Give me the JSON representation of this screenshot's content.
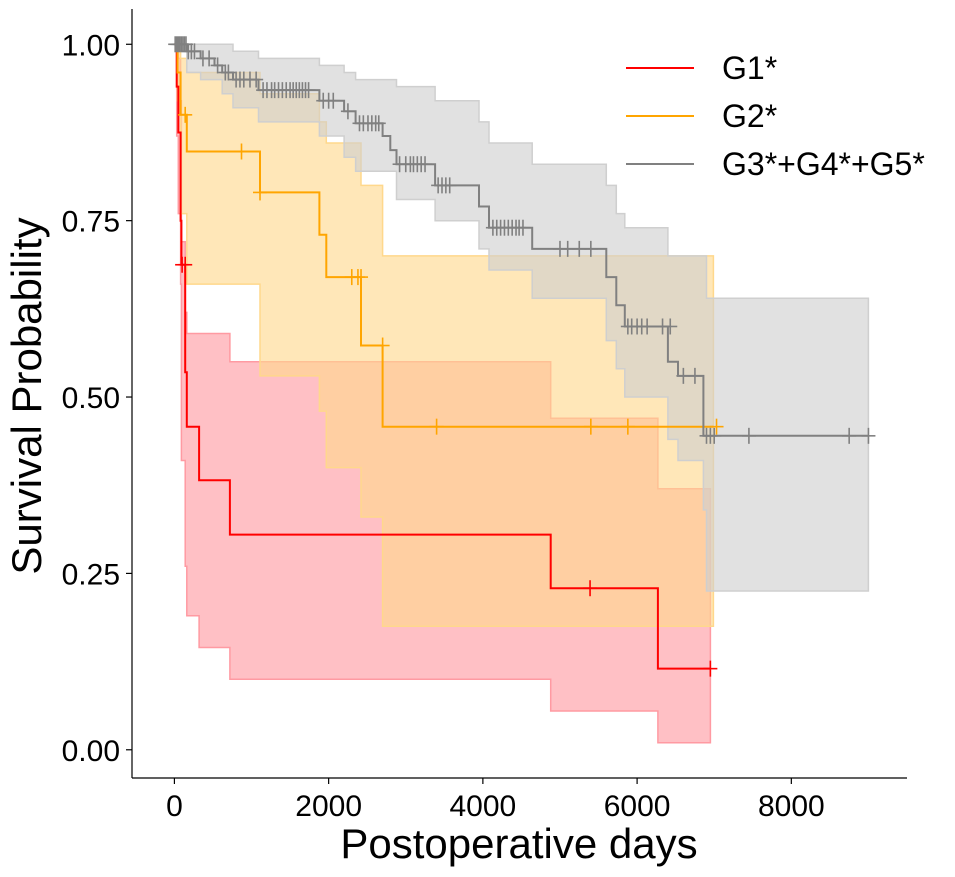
{
  "chart_data": {
    "type": "line",
    "subtype": "kaplan-meier survival curves with confidence bands",
    "xlabel": "Postoperative days",
    "ylabel": "Survival Probability",
    "xlim": [
      -550,
      9500
    ],
    "ylim": [
      -0.04,
      1.05
    ],
    "xticks": [
      0,
      2000,
      4000,
      6000,
      8000
    ],
    "xtick_labels": [
      "0",
      "2000",
      "4000",
      "6000",
      "8000"
    ],
    "yticks": [
      0.0,
      0.25,
      0.5,
      0.75,
      1.0
    ],
    "ytick_labels": [
      "0.00",
      "0.25",
      "0.50",
      "0.75",
      "1.00"
    ],
    "grid": false,
    "legend_position": "top-right",
    "series": [
      {
        "name": "G1*",
        "color": "#ff0000",
        "band_color": "#ff9aa2",
        "steps": [
          [
            0,
            1.0
          ],
          [
            30,
            0.94
          ],
          [
            50,
            0.875
          ],
          [
            80,
            0.75
          ],
          [
            90,
            0.6875
          ],
          [
            140,
            0.535
          ],
          [
            160,
            0.458
          ],
          [
            320,
            0.382
          ],
          [
            720,
            0.305
          ],
          [
            4880,
            0.229
          ],
          [
            6270,
            0.115
          ],
          [
            6950,
            0.115
          ]
        ],
        "ci_lower": [
          [
            0,
            1.0
          ],
          [
            30,
            0.87
          ],
          [
            50,
            0.76
          ],
          [
            80,
            0.66
          ],
          [
            90,
            0.41
          ],
          [
            140,
            0.26
          ],
          [
            160,
            0.19
          ],
          [
            320,
            0.145
          ],
          [
            720,
            0.1
          ],
          [
            4880,
            0.055
          ],
          [
            6270,
            0.01
          ],
          [
            6950,
            0.01
          ]
        ],
        "ci_upper": [
          [
            0,
            1.0
          ],
          [
            30,
            0.99
          ],
          [
            50,
            0.98
          ],
          [
            80,
            0.92
          ],
          [
            90,
            0.72
          ],
          [
            140,
            0.62
          ],
          [
            160,
            0.59
          ],
          [
            720,
            0.55
          ],
          [
            4880,
            0.47
          ],
          [
            6270,
            0.37
          ],
          [
            6950,
            0.37
          ]
        ],
        "censors": [
          [
            100,
            0.6875
          ],
          [
            140,
            0.6875
          ],
          [
            5390,
            0.229
          ],
          [
            6950,
            0.115
          ]
        ]
      },
      {
        "name": "G2*",
        "color": "#ffa500",
        "band_color": "#ffd88c",
        "steps": [
          [
            0,
            1.0
          ],
          [
            40,
            0.96
          ],
          [
            80,
            0.9
          ],
          [
            160,
            0.848
          ],
          [
            1110,
            0.79
          ],
          [
            1880,
            0.73
          ],
          [
            1970,
            0.67
          ],
          [
            2420,
            0.573
          ],
          [
            2700,
            0.458
          ],
          [
            6990,
            0.458
          ]
        ],
        "ci_lower": [
          [
            0,
            1.0
          ],
          [
            40,
            0.92
          ],
          [
            80,
            0.76
          ],
          [
            160,
            0.66
          ],
          [
            1110,
            0.53
          ],
          [
            1880,
            0.48
          ],
          [
            1970,
            0.4
          ],
          [
            2420,
            0.33
          ],
          [
            2700,
            0.175
          ],
          [
            6990,
            0.175
          ]
        ],
        "ci_upper": [
          [
            0,
            1.0
          ],
          [
            40,
            0.99
          ],
          [
            80,
            0.98
          ],
          [
            160,
            0.96
          ],
          [
            1110,
            0.93
          ],
          [
            1880,
            0.89
          ],
          [
            1970,
            0.86
          ],
          [
            2420,
            0.8
          ],
          [
            2700,
            0.7
          ],
          [
            6990,
            0.7
          ]
        ],
        "censors": [
          [
            140,
            0.9
          ],
          [
            870,
            0.848
          ],
          [
            1110,
            0.79
          ],
          [
            2300,
            0.67
          ],
          [
            2380,
            0.67
          ],
          [
            2420,
            0.67
          ],
          [
            2700,
            0.573
          ],
          [
            3400,
            0.458
          ],
          [
            5400,
            0.458
          ],
          [
            5880,
            0.458
          ],
          [
            7030,
            0.458
          ]
        ]
      },
      {
        "name": "G3*+G4*+G5*",
        "color": "#808080",
        "band_color": "#cfcfcf",
        "steps": [
          [
            0,
            1.0
          ],
          [
            160,
            0.99
          ],
          [
            340,
            0.98
          ],
          [
            520,
            0.97
          ],
          [
            620,
            0.96
          ],
          [
            760,
            0.95
          ],
          [
            1090,
            0.935
          ],
          [
            1880,
            0.92
          ],
          [
            2200,
            0.905
          ],
          [
            2350,
            0.888
          ],
          [
            2700,
            0.87
          ],
          [
            2800,
            0.85
          ],
          [
            2880,
            0.83
          ],
          [
            3380,
            0.8
          ],
          [
            3950,
            0.77
          ],
          [
            4080,
            0.74
          ],
          [
            4640,
            0.71
          ],
          [
            5600,
            0.67
          ],
          [
            5730,
            0.63
          ],
          [
            5840,
            0.6
          ],
          [
            6400,
            0.55
          ],
          [
            6530,
            0.53
          ],
          [
            6860,
            0.445
          ],
          [
            9000,
            0.445
          ]
        ],
        "ci_lower": [
          [
            0,
            1.0
          ],
          [
            160,
            0.96
          ],
          [
            340,
            0.95
          ],
          [
            620,
            0.93
          ],
          [
            760,
            0.91
          ],
          [
            1090,
            0.89
          ],
          [
            1880,
            0.87
          ],
          [
            2200,
            0.84
          ],
          [
            2350,
            0.82
          ],
          [
            2880,
            0.78
          ],
          [
            3380,
            0.75
          ],
          [
            3950,
            0.71
          ],
          [
            4080,
            0.68
          ],
          [
            4640,
            0.64
          ],
          [
            5600,
            0.58
          ],
          [
            5730,
            0.54
          ],
          [
            5840,
            0.5
          ],
          [
            6400,
            0.44
          ],
          [
            6530,
            0.41
          ],
          [
            6860,
            0.34
          ],
          [
            6900,
            0.225
          ],
          [
            9000,
            0.225
          ]
        ],
        "ci_upper": [
          [
            0,
            1.0
          ],
          [
            760,
            0.99
          ],
          [
            1090,
            0.98
          ],
          [
            1880,
            0.97
          ],
          [
            2200,
            0.96
          ],
          [
            2350,
            0.95
          ],
          [
            2880,
            0.94
          ],
          [
            3380,
            0.92
          ],
          [
            3950,
            0.89
          ],
          [
            4080,
            0.86
          ],
          [
            4640,
            0.83
          ],
          [
            5600,
            0.8
          ],
          [
            5730,
            0.76
          ],
          [
            5840,
            0.74
          ],
          [
            6400,
            0.7
          ],
          [
            6900,
            0.64
          ],
          [
            9000,
            0.64
          ]
        ],
        "censors": [
          [
            10,
            1.0
          ],
          [
            30,
            1.0
          ],
          [
            50,
            1.0
          ],
          [
            70,
            1.0
          ],
          [
            90,
            1.0
          ],
          [
            110,
            1.0
          ],
          [
            130,
            1.0
          ],
          [
            150,
            1.0
          ],
          [
            180,
            0.99
          ],
          [
            220,
            0.99
          ],
          [
            260,
            0.99
          ],
          [
            370,
            0.98
          ],
          [
            450,
            0.98
          ],
          [
            560,
            0.97
          ],
          [
            660,
            0.96
          ],
          [
            700,
            0.96
          ],
          [
            800,
            0.95
          ],
          [
            850,
            0.95
          ],
          [
            900,
            0.95
          ],
          [
            980,
            0.95
          ],
          [
            1060,
            0.95
          ],
          [
            1150,
            0.935
          ],
          [
            1200,
            0.935
          ],
          [
            1260,
            0.935
          ],
          [
            1300,
            0.935
          ],
          [
            1350,
            0.935
          ],
          [
            1400,
            0.935
          ],
          [
            1450,
            0.935
          ],
          [
            1500,
            0.935
          ],
          [
            1540,
            0.935
          ],
          [
            1580,
            0.935
          ],
          [
            1620,
            0.935
          ],
          [
            1660,
            0.935
          ],
          [
            1700,
            0.935
          ],
          [
            1740,
            0.935
          ],
          [
            1930,
            0.92
          ],
          [
            2000,
            0.92
          ],
          [
            2060,
            0.92
          ],
          [
            2250,
            0.905
          ],
          [
            2400,
            0.888
          ],
          [
            2450,
            0.888
          ],
          [
            2510,
            0.888
          ],
          [
            2560,
            0.888
          ],
          [
            2610,
            0.888
          ],
          [
            2650,
            0.888
          ],
          [
            2920,
            0.83
          ],
          [
            3000,
            0.83
          ],
          [
            3060,
            0.83
          ],
          [
            3100,
            0.83
          ],
          [
            3150,
            0.83
          ],
          [
            3200,
            0.83
          ],
          [
            3250,
            0.83
          ],
          [
            3420,
            0.8
          ],
          [
            3470,
            0.8
          ],
          [
            3520,
            0.8
          ],
          [
            3570,
            0.8
          ],
          [
            4130,
            0.74
          ],
          [
            4180,
            0.74
          ],
          [
            4230,
            0.74
          ],
          [
            4280,
            0.74
          ],
          [
            4330,
            0.74
          ],
          [
            4380,
            0.74
          ],
          [
            4430,
            0.74
          ],
          [
            4470,
            0.74
          ],
          [
            4520,
            0.74
          ],
          [
            5000,
            0.71
          ],
          [
            5100,
            0.71
          ],
          [
            5250,
            0.71
          ],
          [
            5400,
            0.71
          ],
          [
            5880,
            0.6
          ],
          [
            5930,
            0.6
          ],
          [
            6000,
            0.6
          ],
          [
            6060,
            0.6
          ],
          [
            6130,
            0.6
          ],
          [
            6330,
            0.6
          ],
          [
            6430,
            0.6
          ],
          [
            6600,
            0.53
          ],
          [
            6750,
            0.53
          ],
          [
            6900,
            0.445
          ],
          [
            6950,
            0.445
          ],
          [
            7000,
            0.445
          ],
          [
            7450,
            0.445
          ],
          [
            8750,
            0.445
          ],
          [
            9000,
            0.445
          ]
        ]
      }
    ]
  }
}
